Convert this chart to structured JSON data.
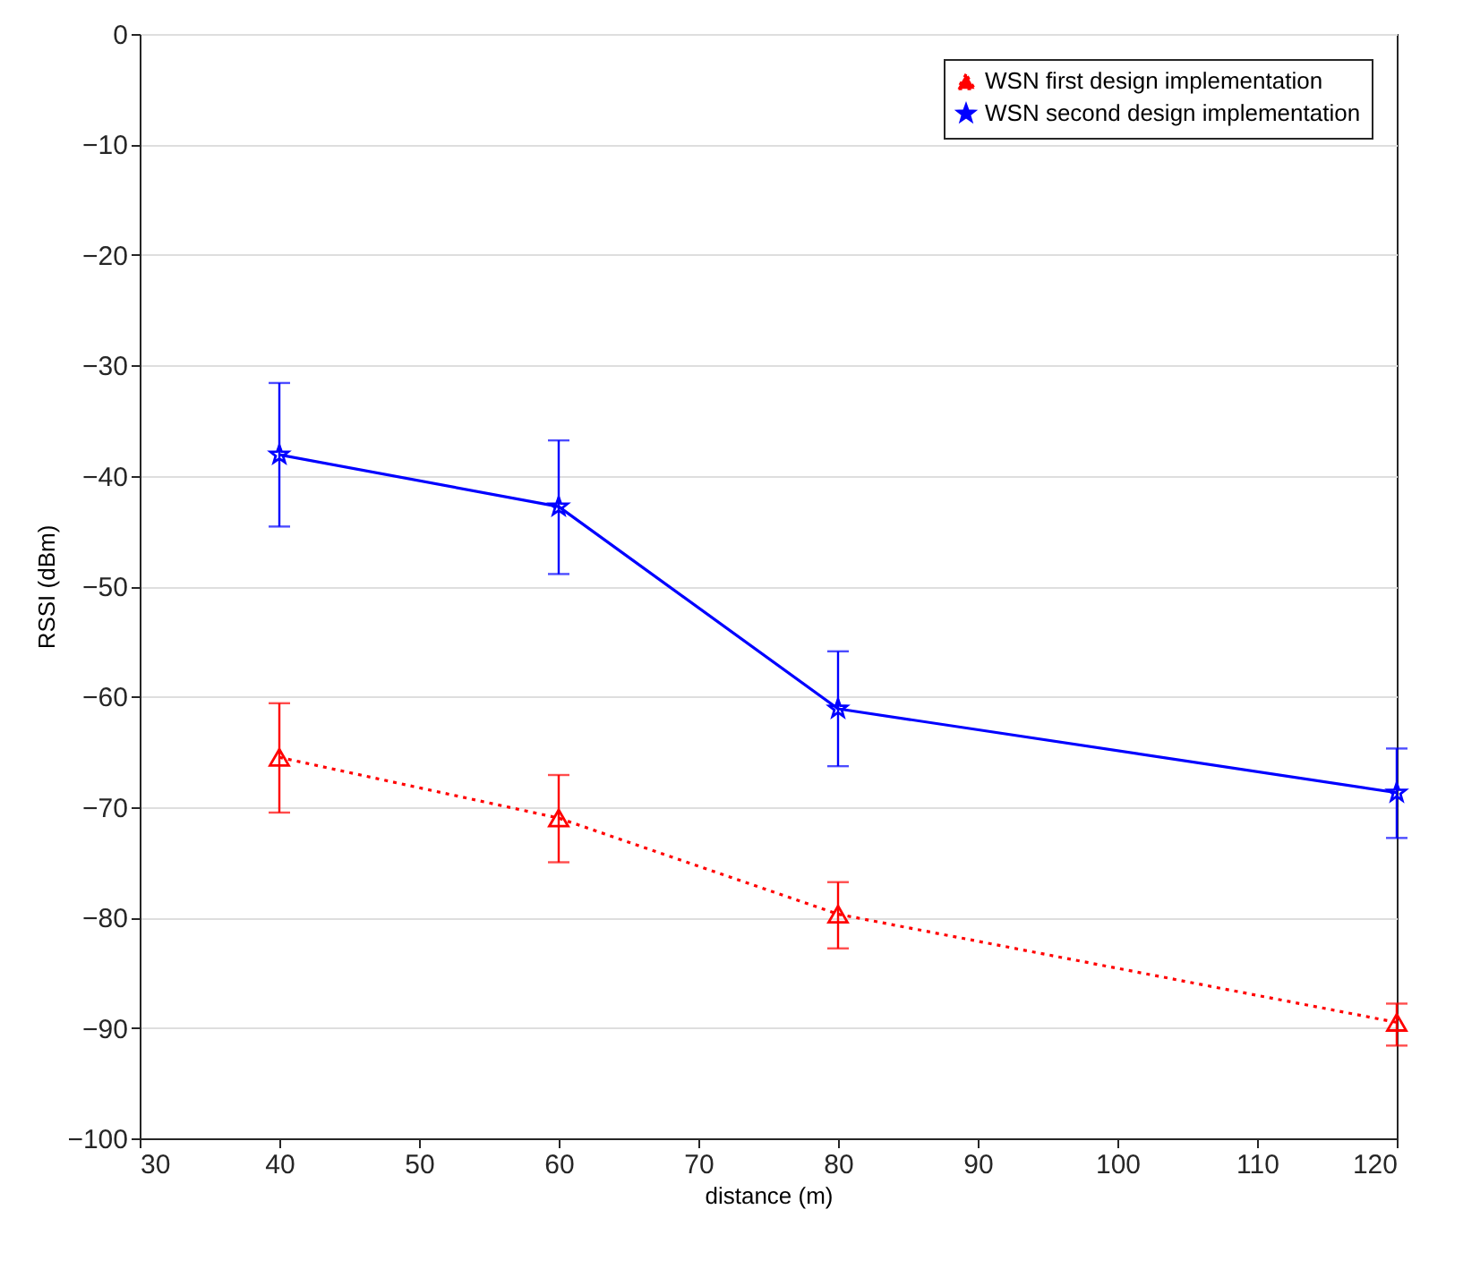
{
  "chart_data": {
    "type": "line",
    "xlabel": "distance (m)",
    "ylabel": "RSSI (dBm)",
    "x": [
      40,
      60,
      80,
      120
    ],
    "series": [
      {
        "name": "WSN first design implementation",
        "color": "#ff0000",
        "marker": "triangle",
        "line_style": "dotted",
        "values": [
          -65.5,
          -71,
          -79.7,
          -89.5
        ],
        "errors": [
          [
            -70.5,
            -60.6
          ],
          [
            -75,
            -67.1
          ],
          [
            -82.8,
            -76.8
          ],
          [
            -91.6,
            -87.8
          ]
        ]
      },
      {
        "name": "WSN second design implementation",
        "color": "#0000ff",
        "marker": "star",
        "line_style": "solid",
        "values": [
          -38.1,
          -42.8,
          -61.1,
          -68.7
        ],
        "errors": [
          [
            -44.6,
            -31.6
          ],
          [
            -48.9,
            -36.8
          ],
          [
            -66.3,
            -55.9
          ],
          [
            -72.8,
            -64.7
          ]
        ]
      }
    ],
    "xlim": [
      30,
      120
    ],
    "xticks": [
      30,
      40,
      50,
      60,
      70,
      80,
      90,
      100,
      110,
      120
    ],
    "ylim": [
      -100,
      0
    ],
    "yticks": [
      -100,
      -90,
      -80,
      -70,
      -60,
      -50,
      -40,
      -30,
      -20,
      -10,
      0
    ],
    "grid": "y",
    "legend": "top right"
  }
}
